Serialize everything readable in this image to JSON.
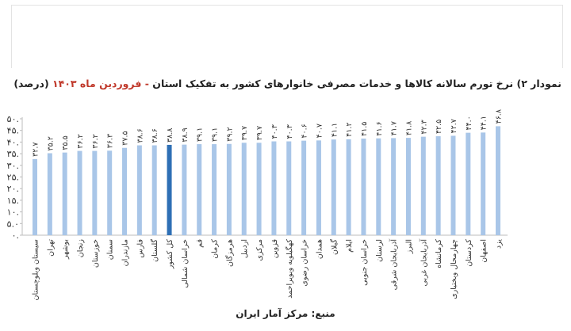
{
  "page": {
    "title_main": "نمودار ۲) نرخ تورم سالانه کالاها و خدمات مصرفی خانوارهای کشور به تفکیک استان",
    "title_dash": " - ",
    "title_period": "فروردین ماه ۱۴۰۳",
    "title_unit": " (درصد)",
    "source": "منبع: مرکز آمار ایران"
  },
  "chart_data": {
    "type": "bar",
    "ylim": [
      0,
      50
    ],
    "y_ticks": [
      0,
      5,
      10,
      15,
      20,
      25,
      30,
      35,
      40,
      45,
      50
    ],
    "y_tick_labels": [
      "۰.",
      "۵.۰",
      "۱۰.",
      "۱۵.",
      "۲۰.",
      "۲۵.",
      "۳۰.",
      "۳۵.",
      "۴۰.",
      "۴۵.",
      "۵۰."
    ],
    "grid": false,
    "colors": {
      "bar": "#a9c6e8",
      "highlight": "#2e6fb5"
    },
    "highlight_category": "کل کشور",
    "categories": [
      "سیستان وبلوچستان",
      "تهران",
      "بوشهر",
      "زنجان",
      "خوزستان",
      "سمنان",
      "مازندران",
      "فارس",
      "گلستان",
      "کل کشور",
      "خراسان شمالی",
      "قم",
      "کرمان",
      "هرمزگان",
      "اردبیل",
      "مرکزی",
      "قزوین",
      "کهگیلویه وبویراحمد",
      "خراسان رضوی",
      "همدان",
      "گیلان",
      "ایلام",
      "خراسان جنوبی",
      "لرستان",
      "آذربایجان شرقی",
      "البرز",
      "آذربایجان غربی",
      "کرمانشاه",
      "چهارمحال وبختیاری",
      "کردستان",
      "اصفهان",
      "یزد"
    ],
    "values": [
      32.7,
      35.2,
      35.5,
      36.2,
      36.2,
      36.3,
      37.5,
      38.6,
      38.6,
      38.8,
      38.9,
      39.1,
      39.1,
      39.2,
      39.7,
      39.7,
      40.3,
      40.3,
      40.6,
      40.7,
      41.1,
      41.2,
      41.5,
      41.6,
      41.7,
      41.8,
      42.3,
      42.5,
      42.7,
      44.0,
      44.1,
      46.8
    ],
    "value_labels": [
      "۳۲.۷",
      "۳۵.۲",
      "۳۵.۵",
      "۳۶.۲",
      "۳۶.۲",
      "۳۶.۳",
      "۳۷.۵",
      "۳۸.۶",
      "۳۸.۶",
      "۳۸.۸",
      "۳۸.۹",
      "۳۹.۱",
      "۳۹.۱",
      "۳۹.۲",
      "۳۹.۷",
      "۳۹.۷",
      "۴۰.۳",
      "۴۰.۳",
      "۴۰.۶",
      "۴۰.۷",
      "۴۱.۱",
      "۴۱.۲",
      "۴۱.۵",
      "۴۱.۶",
      "۴۱.۷",
      "۴۱.۸",
      "۴۲.۳",
      "۴۲.۵",
      "۴۲.۷",
      "۴۴.۰",
      "۴۴.۱",
      "۴۶.۸"
    ]
  }
}
